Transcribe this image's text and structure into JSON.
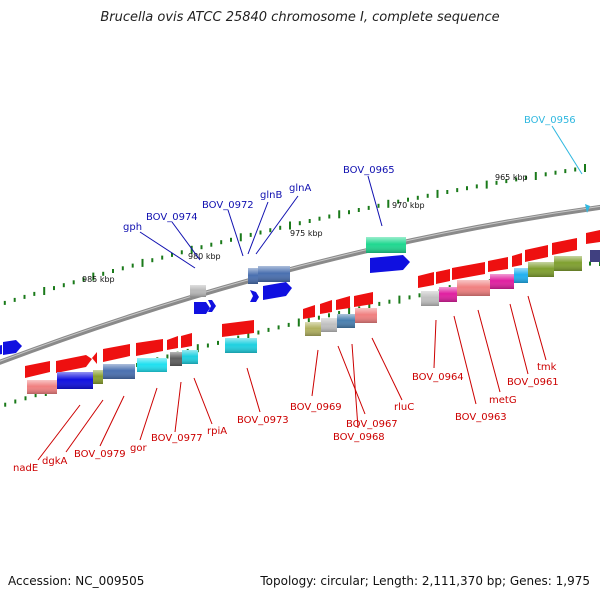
{
  "title": "Brucella ovis ATCC 25840 chromosome I, complete sequence",
  "footer": {
    "accession": "Accession: NC_009505",
    "stats": "Topology: circular; Length: 2,111,370 bp; Genes: 1,975"
  },
  "colors": {
    "backbone": "#8a8a8a",
    "tick": "#1a7a1a",
    "label_top": "#1010b0",
    "label_bottom": "#cc0000",
    "label_highlight": "#30b8e0"
  },
  "kbp_labels": [
    "985 kbp",
    "980 kbp",
    "975 kbp",
    "970 kbp",
    "965 kbp"
  ],
  "labels_top": [
    "gph",
    "BOV_0974",
    "BOV_0972",
    "glnB",
    "glnA",
    "BOV_0965"
  ],
  "label_highlight": "BOV_0956",
  "labels_bottom": [
    "nadE",
    "dgkA",
    "BOV_0979",
    "gor",
    "BOV_0977",
    "rpiA",
    "BOV_0973",
    "BOV_0969",
    "BOV_0967",
    "BOV_0968",
    "rluC",
    "BOV_0964",
    "BOV_0963",
    "metG",
    "BOV_0961",
    "tmk"
  ]
}
